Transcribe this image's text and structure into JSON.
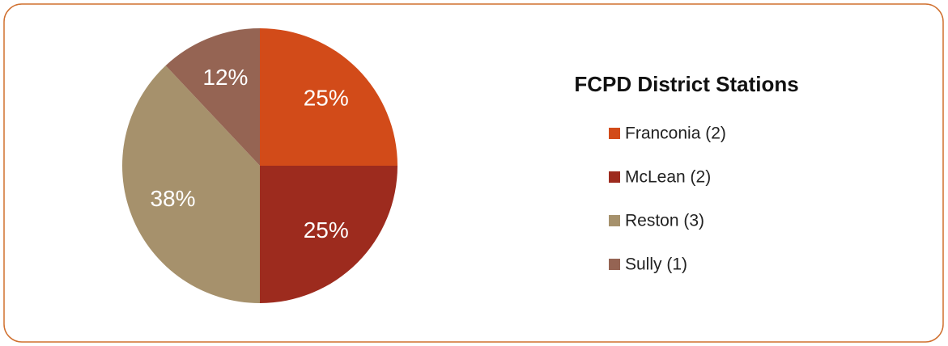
{
  "chart_data": {
    "type": "pie",
    "title": "FCPD District Stations",
    "categories": [
      "Franconia (2)",
      "McLean (2)",
      "Reston (3)",
      "Sully (1)"
    ],
    "values": [
      25,
      25,
      38,
      12
    ],
    "value_labels": [
      "25%",
      "25%",
      "38%",
      "12%"
    ],
    "colors": [
      "#d24b19",
      "#9d2b1e",
      "#a6916c",
      "#956453"
    ],
    "legend": "right"
  }
}
